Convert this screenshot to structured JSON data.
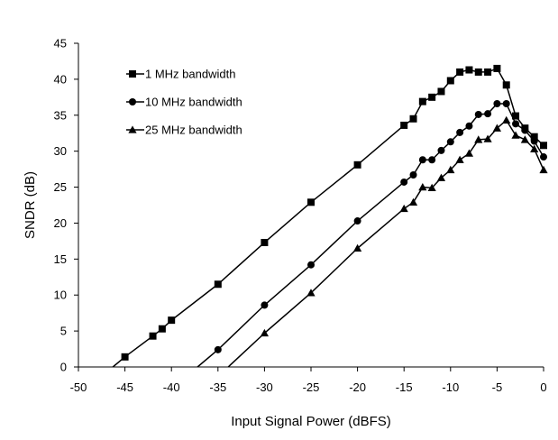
{
  "chart_data": {
    "type": "line",
    "title": "",
    "xlabel": "Input Signal Power (dBFS)",
    "ylabel": "SNDR (dB)",
    "xlim": [
      -50,
      0
    ],
    "ylim": [
      0,
      45
    ],
    "xticks": [
      -50,
      -45,
      -40,
      -35,
      -30,
      -25,
      -20,
      -15,
      -10,
      -5,
      0
    ],
    "yticks": [
      0,
      5,
      10,
      15,
      20,
      25,
      30,
      35,
      40,
      45
    ],
    "xtick_labels": [
      "-50",
      "-45",
      "-40",
      "-35",
      "-30",
      "-25",
      "-20",
      "-15",
      "-10",
      "-5",
      "0"
    ],
    "ytick_labels": [
      "0",
      "5",
      "10",
      "15",
      "20",
      "25",
      "30",
      "35",
      "40",
      "45"
    ],
    "grid": false,
    "legend_position": "top-left",
    "series": [
      {
        "name": "1 MHz bandwidth",
        "marker": "square",
        "color": "#000000",
        "x": [
          -46.3,
          -45,
          -42,
          -41,
          -40,
          -35,
          -30,
          -25,
          -20,
          -15,
          -14,
          -13,
          -12,
          -11,
          -10,
          -9,
          -8,
          -7,
          -6,
          -5,
          -4,
          -3,
          -2,
          -1,
          0
        ],
        "y": [
          0,
          1.4,
          4.3,
          5.3,
          6.5,
          11.5,
          17.3,
          22.9,
          28.1,
          33.6,
          34.5,
          36.9,
          37.5,
          38.3,
          39.8,
          41.0,
          41.3,
          41.0,
          41.0,
          41.5,
          39.2,
          34.9,
          33.2,
          32.0,
          30.8
        ]
      },
      {
        "name": "10 MHz bandwidth",
        "marker": "circle",
        "color": "#000000",
        "x": [
          -37.2,
          -35,
          -30,
          -25,
          -20,
          -15,
          -14,
          -13,
          -12,
          -11,
          -10,
          -9,
          -8,
          -7,
          -6,
          -5,
          -4,
          -3,
          -2,
          -1,
          0
        ],
        "y": [
          0,
          2.4,
          8.6,
          14.2,
          20.3,
          25.7,
          26.7,
          28.8,
          28.8,
          30.1,
          31.3,
          32.6,
          33.5,
          35.1,
          35.2,
          36.6,
          36.6,
          33.8,
          32.9,
          31.4,
          29.2
        ]
      },
      {
        "name": "25 MHz bandwidth",
        "marker": "triangle",
        "color": "#000000",
        "x": [
          -33.9,
          -30,
          -25,
          -20,
          -15,
          -14,
          -13,
          -12,
          -11,
          -10,
          -9,
          -8,
          -7,
          -6,
          -5,
          -4,
          -3,
          -2,
          -1,
          0
        ],
        "y": [
          0,
          4.7,
          10.3,
          16.5,
          22.0,
          22.9,
          25.0,
          24.9,
          26.3,
          27.4,
          28.8,
          29.7,
          31.6,
          31.7,
          33.2,
          34.3,
          32.2,
          31.6,
          30.3,
          27.4
        ]
      }
    ]
  }
}
